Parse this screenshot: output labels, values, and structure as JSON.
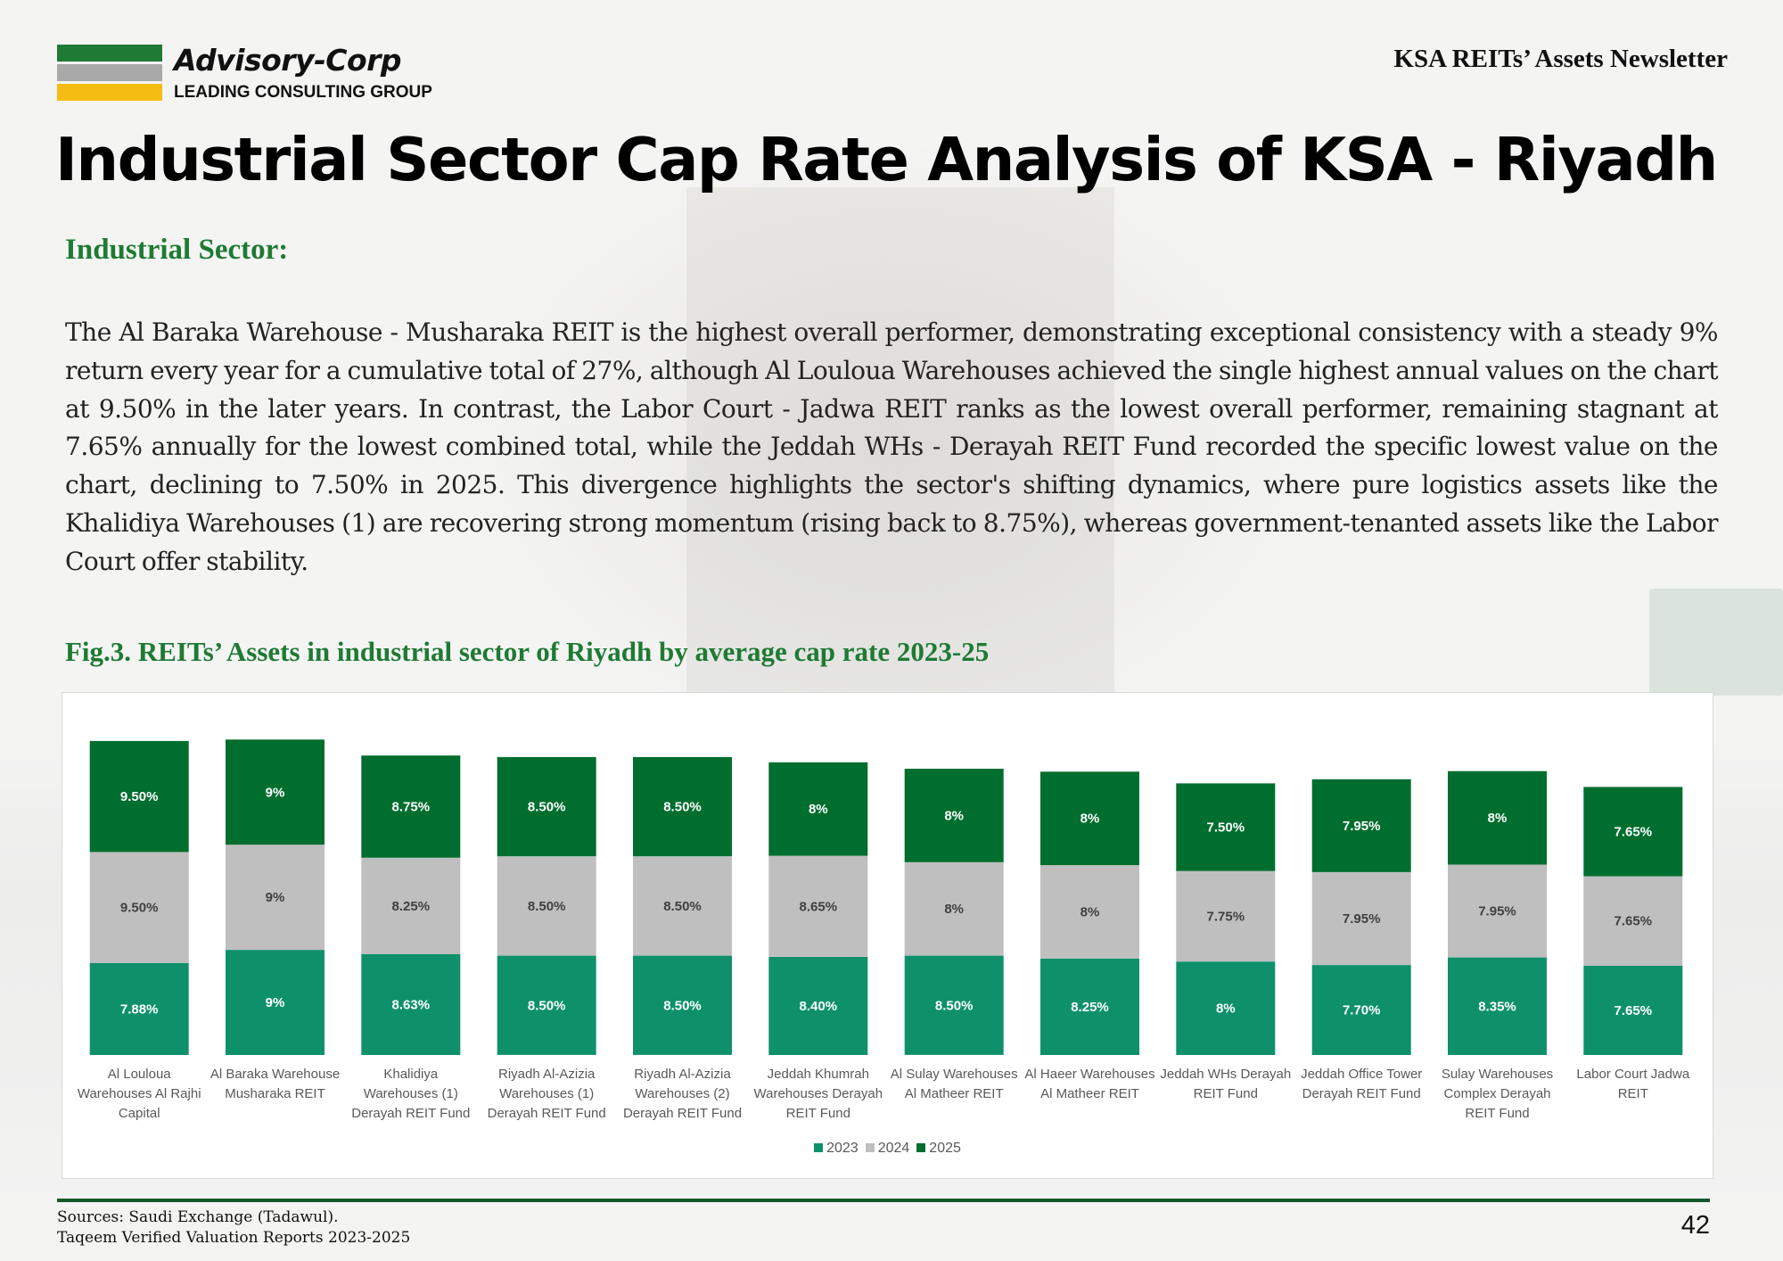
{
  "brand": {
    "name": "Advisory-Corp",
    "tagline": "LEADING CONSULTING GROUP",
    "colors": {
      "green": "#1f7a34",
      "gray": "#a9a9a9",
      "yellow": "#f5bd14"
    }
  },
  "header": {
    "newsletter": "KSA REITs’ Assets Newsletter",
    "title": "Industrial Sector Cap Rate Analysis of KSA - Riyadh"
  },
  "section": {
    "heading": "Industrial Sector:",
    "body": "The Al Baraka Warehouse - Musharaka REIT is the highest overall performer, demonstrating exceptional consistency with a steady 9% return every year for a cumulative total of 27%, although Al Louloua Warehouses achieved the single highest annual values on the chart at 9.50% in the later years. In contrast, the Labor Court - Jadwa REIT ranks as the lowest overall performer, remaining stagnant at 7.65% annually for the lowest combined total, while the Jeddah WHs - Derayah REIT Fund recorded the specific lowest value on the chart, declining to 7.50% in 2025. This divergence highlights the sector's shifting dynamics, where pure logistics assets like the Khalidiya Warehouses (1) are recovering strong momentum (rising back to 8.75%), whereas government-tenanted assets like the Labor Court offer stability."
  },
  "figure": {
    "caption": "Fig.3. REITs’ Assets in industrial sector of Riyadh by average cap rate 2023-25"
  },
  "chart_data": {
    "type": "bar",
    "stacked": true,
    "title": "",
    "xlabel": "",
    "ylabel": "",
    "categories": [
      [
        "Al Louloua",
        "Warehouses  Al Rajhi",
        "Capital"
      ],
      [
        "Al Baraka Warehouse",
        "Musharaka REIT"
      ],
      [
        "Khalidiya",
        "Warehouses (1)",
        "Derayah REIT Fund"
      ],
      [
        "Riyadh Al-Azizia",
        "Warehouses (1)",
        "Derayah REIT Fund"
      ],
      [
        "Riyadh Al-Azizia",
        "Warehouses (2)",
        "Derayah REIT Fund"
      ],
      [
        "Jeddah Khumrah",
        "Warehouses  Derayah",
        "REIT Fund"
      ],
      [
        "Al Sulay Warehouses",
        "Al Matheer REIT"
      ],
      [
        "Al Haeer Warehouses",
        "Al Matheer REIT"
      ],
      [
        "Jeddah WHs  Derayah",
        "REIT Fund"
      ],
      [
        "Jeddah Office Tower",
        "Derayah REIT Fund"
      ],
      [
        "Sulay Warehouses",
        "Complex  Derayah",
        "REIT Fund"
      ],
      [
        "Labor Court  Jadwa",
        "REIT"
      ]
    ],
    "series": [
      {
        "name": "2023",
        "color": "#0e916b",
        "values": [
          7.88,
          9,
          8.63,
          8.5,
          8.5,
          8.4,
          8.5,
          8.25,
          8,
          7.7,
          8.35,
          7.65
        ],
        "labels": [
          "7.88%",
          "9%",
          "8.63%",
          "8.50%",
          "8.50%",
          "8.40%",
          "8.50%",
          "8.25%",
          "8%",
          "7.70%",
          "8.35%",
          "7.65%"
        ]
      },
      {
        "name": "2024",
        "color": "#bfbfbf",
        "values": [
          9.5,
          9,
          8.25,
          8.5,
          8.5,
          8.65,
          8,
          8,
          7.75,
          7.95,
          7.95,
          7.65
        ],
        "labels": [
          "9.50%",
          "9%",
          "8.25%",
          "8.50%",
          "8.50%",
          "8.65%",
          "8%",
          "8%",
          "7.75%",
          "7.95%",
          "7.95%",
          "7.65%"
        ]
      },
      {
        "name": "2025",
        "color": "#006e2e",
        "values": [
          9.5,
          9,
          8.75,
          8.5,
          8.5,
          8,
          8,
          8,
          7.5,
          7.95,
          8,
          7.65
        ],
        "labels": [
          "9.50%",
          "9%",
          "8.75%",
          "8.50%",
          "8.50%",
          "8%",
          "8%",
          "8%",
          "7.50%",
          "7.95%",
          "8%",
          "7.65%"
        ]
      }
    ],
    "legend": [
      "2023",
      "2024",
      "2025"
    ],
    "legend_position": "bottom",
    "grid": false
  },
  "footer": {
    "sources_line1": "Sources: Saudi Exchange (Tadawul).",
    "sources_line2": "Taqeem Verified Valuation Reports 2023-2025",
    "page_number": "42"
  }
}
